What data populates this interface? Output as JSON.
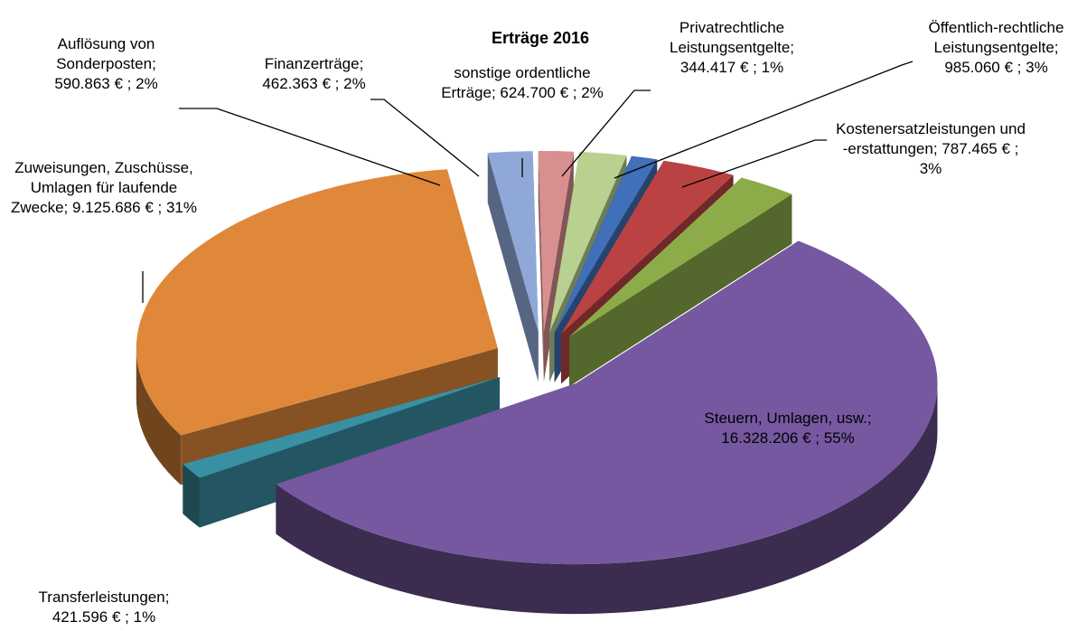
{
  "chart_data": {
    "type": "pie3d",
    "title": "Erträge 2016",
    "categories": [
      "Steuern, Umlagen, usw.;",
      "Transferleistungen;",
      "Zuweisungen, Zuschüsse, Umlagen für laufende Zwecke;",
      "Auflösung von Sonderposten;",
      "Finanzerträge;",
      "sonstige ordentliche Erträge;",
      "Privatrechtliche Leistungsentgelte;",
      "Öffentlich-rechtliche Leistungsentgelte;",
      "Kostenersatzleistungen und -erstattungen;"
    ],
    "values": [
      16328206,
      421596,
      9125686,
      590863,
      462363,
      624700,
      344417,
      985060,
      787465
    ],
    "value_labels": [
      "16.328.206 € ; 55%",
      "421.596 € ; 1%",
      "9.125.686 € ; 31%",
      "590.863 € ; 2%",
      "462.363 € ; 2%",
      "624.700 € ; 2%",
      "344.417 € ; 1%",
      "985.060 € ; 3%",
      "787.465 € ; 3%"
    ],
    "colors": [
      "#7558a0",
      "#3a90a3",
      "#e0883a",
      "#8fa8d8",
      "#d98f8f",
      "#b8d090",
      "#3f70b8",
      "#bb4242",
      "#8cac4a"
    ]
  }
}
